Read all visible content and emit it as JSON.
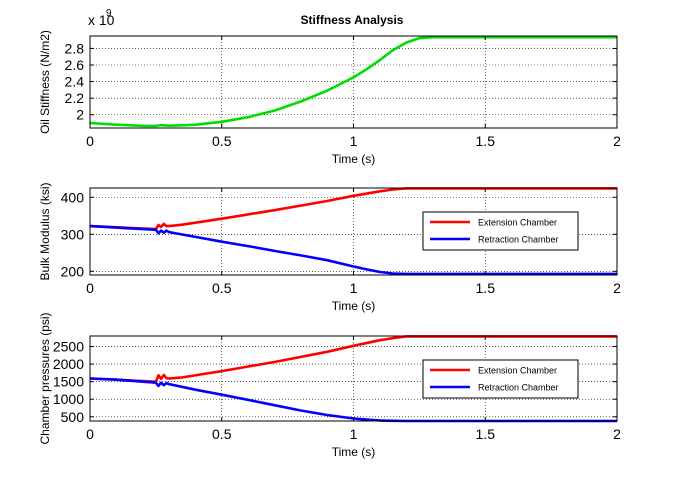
{
  "figure": {
    "title": "Stiffness Analysis",
    "background": "#ffffff"
  },
  "chart_data": [
    {
      "type": "line",
      "title": "Stiffness Analysis",
      "xlabel": "Time (s)",
      "ylabel": "Oil Stiffness (N/m2)",
      "exponent_label": "x 10",
      "exponent_power": "9",
      "xlim": [
        0,
        2
      ],
      "ylim": [
        1.84,
        2.95
      ],
      "xticks": [
        0,
        0.5,
        1,
        1.5,
        2
      ],
      "xtick_labels": [
        "0",
        "0.5",
        "1",
        "1.5",
        "2"
      ],
      "yticks": [
        2.0,
        2.2,
        2.4,
        2.6,
        2.8
      ],
      "ytick_labels": [
        "2",
        "2.2",
        "2.4",
        "2.6",
        "2.8"
      ],
      "grid": true,
      "legend": null,
      "series": [
        {
          "color": "#00dd00",
          "x": [
            0,
            0.1,
            0.2,
            0.25,
            0.27,
            0.28,
            0.3,
            0.35,
            0.4,
            0.5,
            0.6,
            0.7,
            0.8,
            0.9,
            1.0,
            1.05,
            1.1,
            1.15,
            1.2,
            1.25,
            1.3,
            1.4,
            1.6,
            1.8,
            2.0
          ],
          "y": [
            1.9,
            1.88,
            1.867,
            1.865,
            1.875,
            1.872,
            1.868,
            1.872,
            1.88,
            1.915,
            1.97,
            2.05,
            2.16,
            2.29,
            2.45,
            2.55,
            2.66,
            2.78,
            2.87,
            2.925,
            2.935,
            2.935,
            2.935,
            2.935,
            2.935
          ]
        }
      ]
    },
    {
      "type": "line",
      "xlabel": "Time (s)",
      "ylabel": "Bulk Modulus (ksi)",
      "xlim": [
        0,
        2
      ],
      "ylim": [
        190,
        425
      ],
      "xticks": [
        0,
        0.5,
        1,
        1.5,
        2
      ],
      "xtick_labels": [
        "0",
        "0.5",
        "1",
        "1.5",
        "2"
      ],
      "yticks": [
        200,
        300,
        400
      ],
      "ytick_labels": [
        "200",
        "300",
        "400"
      ],
      "grid": true,
      "legend": "right",
      "series": [
        {
          "name": "Extension Chamber",
          "color": "#ff0000",
          "x": [
            0,
            0.25,
            0.26,
            0.27,
            0.28,
            0.29,
            0.3,
            0.35,
            0.5,
            0.7,
            0.9,
            1.0,
            1.1,
            1.15,
            1.2,
            1.3,
            1.5,
            2.0
          ],
          "y": [
            322,
            314,
            325,
            320,
            328,
            322,
            322,
            326,
            342,
            365,
            390,
            404,
            416,
            421,
            424,
            424,
            424,
            424
          ]
        },
        {
          "name": "Retraction Chamber",
          "color": "#0000ff",
          "x": [
            0,
            0.1,
            0.2,
            0.25,
            0.26,
            0.27,
            0.28,
            0.29,
            0.3,
            0.4,
            0.5,
            0.6,
            0.7,
            0.8,
            0.9,
            1.0,
            1.05,
            1.1,
            1.15,
            1.2,
            1.5,
            2.0
          ],
          "y": [
            322,
            318,
            314,
            312,
            303,
            310,
            304,
            310,
            306,
            293,
            280,
            268,
            255,
            243,
            230,
            213,
            205,
            198,
            194,
            193,
            193,
            193
          ]
        }
      ]
    },
    {
      "type": "line",
      "xlabel": "Time (s)",
      "ylabel": "Chamber pressures (psi)",
      "xlim": [
        0,
        2
      ],
      "ylim": [
        380,
        2800
      ],
      "xticks": [
        0,
        0.5,
        1,
        1.5,
        2
      ],
      "xtick_labels": [
        "0",
        "0.5",
        "1",
        "1.5",
        "2"
      ],
      "yticks": [
        500,
        1000,
        1500,
        2000,
        2500
      ],
      "ytick_labels": [
        "500",
        "1000",
        "1500",
        "2000",
        "2500"
      ],
      "grid": true,
      "legend": "right",
      "series": [
        {
          "name": "Extension Chamber",
          "color": "#ff0000",
          "x": [
            0,
            0.25,
            0.26,
            0.27,
            0.28,
            0.29,
            0.3,
            0.35,
            0.5,
            0.7,
            0.9,
            1.0,
            1.1,
            1.15,
            1.2,
            1.3,
            1.5,
            2.0
          ],
          "y": [
            1590,
            1500,
            1680,
            1580,
            1690,
            1600,
            1590,
            1620,
            1800,
            2060,
            2350,
            2520,
            2680,
            2740,
            2790,
            2790,
            2790,
            2790
          ]
        },
        {
          "name": "Retraction Chamber",
          "color": "#0000ff",
          "x": [
            0,
            0.1,
            0.2,
            0.25,
            0.26,
            0.27,
            0.28,
            0.29,
            0.3,
            0.4,
            0.5,
            0.6,
            0.7,
            0.8,
            0.9,
            1.0,
            1.05,
            1.1,
            1.15,
            1.2,
            1.5,
            2.0
          ],
          "y": [
            1590,
            1560,
            1500,
            1470,
            1380,
            1470,
            1400,
            1460,
            1430,
            1270,
            1130,
            980,
            830,
            680,
            550,
            450,
            420,
            395,
            385,
            380,
            380,
            380
          ]
        }
      ]
    }
  ]
}
